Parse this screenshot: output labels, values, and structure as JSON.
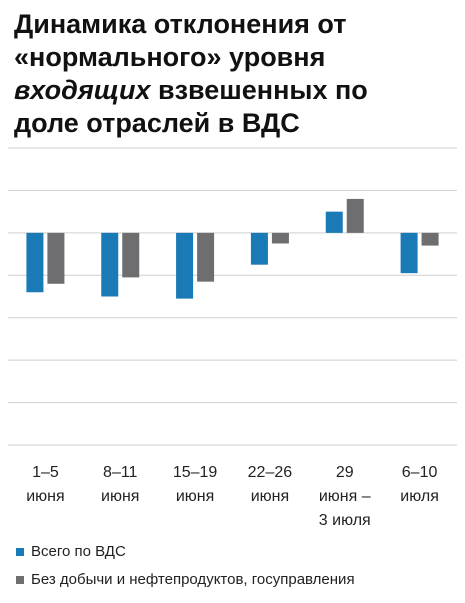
{
  "title": {
    "line1": "Динамика отклонения от",
    "line2": "«нормального» уровня",
    "line3_italic": "входящих",
    "line3_rest": " взвешенных по",
    "line4": "доле отраслей в ВДС"
  },
  "colors": {
    "series_1": "#1a7ab5",
    "series_2": "#6e6e70",
    "grid": "#cfcfcf"
  },
  "chart_data": {
    "type": "bar",
    "title": "Динамика отклонения от «нормального» уровня входящих взвешенных по доле отраслей в ВДС",
    "categories": [
      [
        "1–5",
        "июня"
      ],
      [
        "8–11",
        "июня"
      ],
      [
        "15–19",
        "июня"
      ],
      [
        "22–26",
        "июня"
      ],
      [
        "29",
        "июня –",
        "3 июля"
      ],
      [
        "6–10",
        "июля"
      ]
    ],
    "series": [
      {
        "name": "Всего по ВДС",
        "values": [
          -14,
          -15,
          -15.5,
          -7.5,
          5,
          -9.5
        ]
      },
      {
        "name": "Без добычи и нефтепродуктов, госуправления",
        "values": [
          -12,
          -10.5,
          -11.5,
          -2.5,
          8,
          -3
        ]
      }
    ],
    "ylim": [
      -50,
      20
    ],
    "grid": true,
    "legend": "bottom-left",
    "xlabel": "",
    "ylabel": ""
  }
}
